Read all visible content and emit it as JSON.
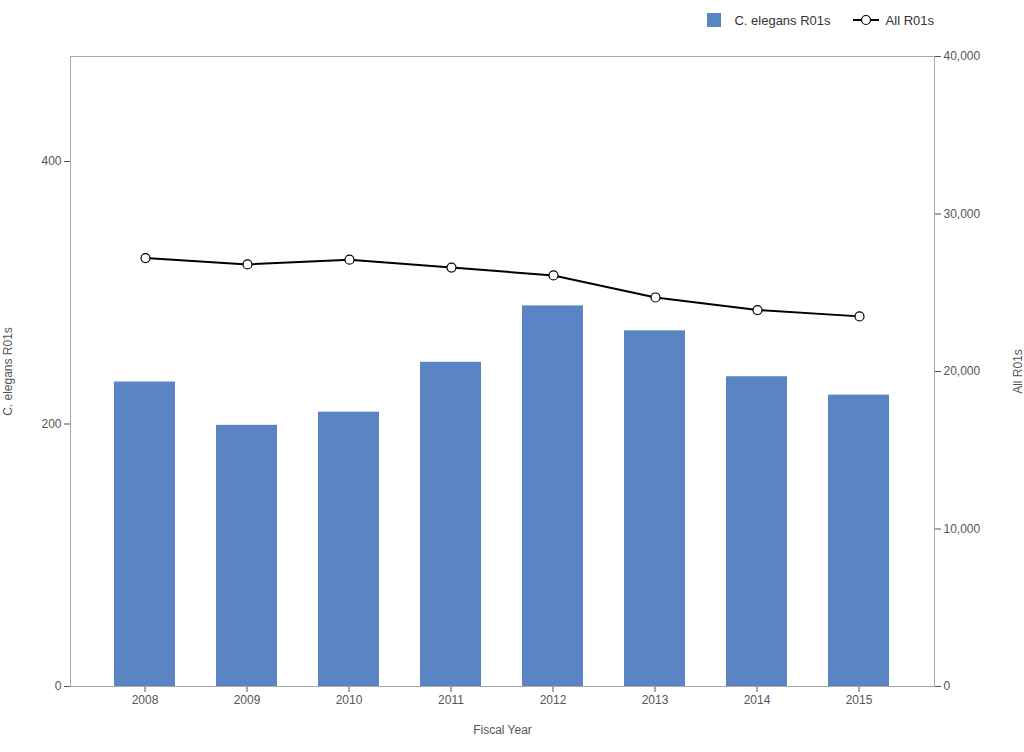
{
  "chart_data": {
    "type": "bar",
    "xlabel": "Fiscal Year",
    "ylabel": "C. elegans R01s",
    "y2label": "All R01s",
    "categories": [
      "2008",
      "2009",
      "2010",
      "2011",
      "2012",
      "2013",
      "2014",
      "2015"
    ],
    "series": [
      {
        "name": "C. elegans R01s",
        "type": "bar",
        "color": "#5b84c4",
        "values": [
          232,
          199,
          209,
          247,
          290,
          271,
          236,
          222
        ]
      },
      {
        "name": "All R01s",
        "type": "line",
        "axis": "y2",
        "color": "#000000",
        "marker": "circle",
        "values": [
          27200,
          26800,
          27100,
          26600,
          26100,
          24700,
          23900,
          23500
        ]
      }
    ],
    "ylim": [
      0,
      480
    ],
    "yticks": [
      0,
      200,
      400
    ],
    "y2lim": [
      0,
      40000
    ],
    "y2ticks": [
      0,
      {
        "value": 10000,
        "label": "10,000"
      },
      {
        "value": 20000,
        "label": "20,000"
      },
      {
        "value": 30000,
        "label": "30,000"
      },
      {
        "value": 40000,
        "label": "40,000"
      }
    ],
    "grid": false,
    "legend": "upper right"
  }
}
